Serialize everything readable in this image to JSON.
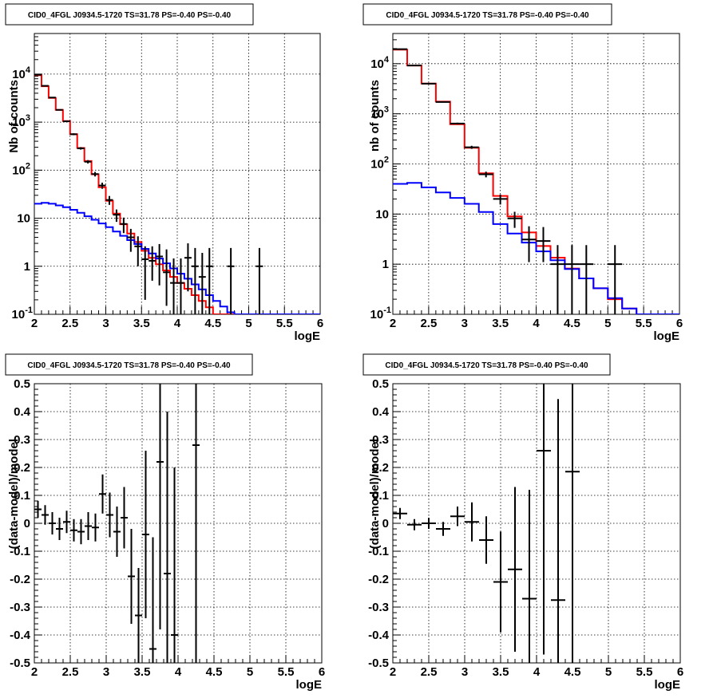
{
  "chart_data": [
    {
      "type": "line",
      "panel": "top-left",
      "title": "CID0_4FGL J0934.5-1720 TS=31.78 PS=-0.40 PS=-0.40",
      "xlabel": "logE",
      "ylabel": "Nb of counts",
      "xlim": [
        2,
        6
      ],
      "ylim": [
        0.1,
        70000
      ],
      "yscale": "log",
      "grid": true,
      "xticks": [
        "2",
        "2.5",
        "3",
        "3.5",
        "4",
        "4.5",
        "5",
        "5.5",
        "6"
      ],
      "yticks": [
        {
          "value": 0.1,
          "label": "10^-1"
        },
        {
          "value": 1,
          "label": "1"
        },
        {
          "value": 10,
          "label": "10"
        },
        {
          "value": 100,
          "label": "10^2"
        },
        {
          "value": 1000,
          "label": "10^3"
        },
        {
          "value": 10000,
          "label": "10^4"
        }
      ],
      "bin_edges": [
        2.0,
        2.1,
        2.2,
        2.3,
        2.4,
        2.5,
        2.6,
        2.7,
        2.8,
        2.9,
        3.0,
        3.1,
        3.2,
        3.3,
        3.4,
        3.5,
        3.6,
        3.7,
        3.8,
        3.9,
        4.0,
        4.1,
        4.2,
        4.3,
        4.4,
        4.5,
        4.6,
        4.7,
        4.8,
        4.9,
        5.0,
        5.1,
        5.2,
        5.3,
        5.4,
        5.5,
        5.6,
        5.7,
        5.8,
        5.9,
        6.0
      ],
      "series": [
        {
          "color": "#ff0000",
          "kind": "step",
          "values": [
            9500,
            5600,
            3200,
            1800,
            1050,
            560,
            290,
            155,
            82,
            44,
            23,
            12.5,
            7.5,
            4.8,
            3.2,
            2.1,
            1.5,
            1.1,
            0.82,
            0.6,
            0.45,
            0.34,
            0.25,
            0.19,
            0.14,
            0.1,
            0.1,
            0.1,
            0.1,
            0.1,
            0.1,
            0.1,
            0.1,
            0.1,
            0.1,
            0.1,
            0.1,
            0.1,
            0.1,
            0.1
          ]
        },
        {
          "color": "#0000ff",
          "kind": "step",
          "values": [
            20,
            21,
            20,
            18.5,
            17,
            15,
            13,
            11,
            9.3,
            7.8,
            6.5,
            5.3,
            4.3,
            3.5,
            2.9,
            2.3,
            1.85,
            1.45,
            1.15,
            0.9,
            0.7,
            0.55,
            0.42,
            0.33,
            0.25,
            0.19,
            0.145,
            0.11,
            0.1,
            0.1,
            0.1,
            0.1,
            0.1,
            0.1,
            0.1,
            0.1,
            0.1,
            0.1,
            0.1,
            0.1
          ]
        },
        {
          "color": "#000000",
          "kind": "errorbar",
          "x": [
            2.05,
            2.15,
            2.25,
            2.35,
            2.45,
            2.55,
            2.65,
            2.75,
            2.85,
            2.95,
            3.05,
            3.15,
            3.25,
            3.35,
            3.45,
            3.55,
            3.65,
            3.75,
            3.85,
            3.95,
            4.05,
            4.15,
            4.25,
            4.35,
            4.45,
            4.75,
            5.15
          ],
          "y": [
            9700,
            5700,
            3250,
            1800,
            1040,
            560,
            285,
            150,
            83,
            48,
            24,
            11.8,
            7.6,
            4.0,
            2.6,
            1.4,
            1.3,
            1.6,
            0.75,
            0.45,
            0.45,
            1.5,
            1.0,
            0.6,
            1.0,
            1.0,
            1.0
          ],
          "yerr_low": [
            100,
            75,
            57,
            42,
            32,
            24,
            17,
            12,
            9,
            7,
            5,
            3.4,
            2.7,
            2.0,
            1.6,
            1.2,
            0.8,
            1.2,
            0.6,
            0.45,
            0.45,
            1.2,
            0.9,
            0.6,
            0.9,
            0.9,
            0.9
          ],
          "yerr_high": [
            100,
            75,
            57,
            42,
            32,
            24,
            17,
            12,
            9,
            7,
            5,
            3.4,
            2.7,
            2.0,
            1.6,
            1.2,
            1.3,
            1.3,
            1.5,
            1.0,
            1.0,
            1.5,
            1.4,
            1.3,
            1.4,
            1.4,
            1.4
          ]
        }
      ]
    },
    {
      "type": "line",
      "panel": "top-right",
      "title": "CID0_4FGL J0934.5-1720 TS=31.78 PS=-0.40 PS=-0.40",
      "xlabel": "logE",
      "ylabel": "nb of counts",
      "xlim": [
        2,
        6
      ],
      "ylim": [
        0.1,
        40000
      ],
      "yscale": "log",
      "grid": true,
      "xticks": [
        "2",
        "2.5",
        "3",
        "3.5",
        "4",
        "4.5",
        "5",
        "5.5",
        "6"
      ],
      "yticks": [
        {
          "value": 0.1,
          "label": "10^-1"
        },
        {
          "value": 1,
          "label": "1"
        },
        {
          "value": 10,
          "label": "10"
        },
        {
          "value": 100,
          "label": "10^2"
        },
        {
          "value": 1000,
          "label": "10^3"
        },
        {
          "value": 10000,
          "label": "10^4"
        }
      ],
      "bin_edges": [
        2.0,
        2.2,
        2.4,
        2.6,
        2.8,
        3.0,
        3.2,
        3.4,
        3.6,
        3.8,
        4.0,
        4.2,
        4.4,
        4.6,
        4.8,
        5.0,
        5.2,
        5.4,
        5.6,
        5.8,
        6.0
      ],
      "series": [
        {
          "color": "#ff0000",
          "kind": "step",
          "values": [
            19000,
            9200,
            4000,
            1750,
            620,
            210,
            65,
            23,
            9.0,
            4.3,
            2.3,
            1.35,
            0.82,
            0.52,
            0.33,
            0.2,
            0.13,
            0.1,
            0.1,
            0.1
          ]
        },
        {
          "color": "#0000ff",
          "kind": "step",
          "values": [
            40,
            42,
            34,
            27,
            21,
            16,
            11,
            6.3,
            4.1,
            2.7,
            1.8,
            1.2,
            0.8,
            0.52,
            0.33,
            0.21,
            0.13,
            0.1,
            0.1,
            0.1
          ]
        },
        {
          "color": "#000000",
          "kind": "errorbar",
          "x": [
            2.1,
            2.3,
            2.5,
            2.7,
            2.9,
            3.1,
            3.3,
            3.5,
            3.7,
            3.9,
            4.1,
            4.3,
            4.5,
            4.7,
            5.1
          ],
          "y": [
            19500,
            9200,
            4000,
            1720,
            640,
            215,
            62,
            20,
            8.2,
            3.1,
            2.9,
            1.0,
            1.0,
            1.0,
            1.0
          ],
          "yerr_low": [
            140,
            96,
            63,
            42,
            25,
            15,
            8,
            4.5,
            2.9,
            2.0,
            1.8,
            0.9,
            0.9,
            0.9,
            0.9
          ],
          "yerr_high": [
            140,
            96,
            63,
            42,
            25,
            15,
            8,
            4.5,
            2.9,
            2.6,
            2.6,
            1.4,
            1.4,
            1.4,
            1.4
          ]
        }
      ]
    },
    {
      "type": "scatter",
      "panel": "bottom-left",
      "title": "CID0_4FGL J0934.5-1720 TS=31.78 PS=-0.40 PS=-0.40",
      "xlabel": "logE",
      "ylabel": "(data-model)/model",
      "xlim": [
        2,
        6
      ],
      "ylim": [
        -0.5,
        0.5
      ],
      "grid": true,
      "xticks": [
        "2",
        "2.5",
        "3",
        "3.5",
        "4",
        "4.5",
        "5",
        "5.5",
        "6"
      ],
      "yticks": [
        "-0.5",
        "-0.4",
        "-0.3",
        "-0.2",
        "-0.1",
        "0",
        "0.1",
        "0.2",
        "0.3",
        "0.4",
        "0.5"
      ],
      "x": [
        2.05,
        2.15,
        2.25,
        2.35,
        2.45,
        2.55,
        2.65,
        2.75,
        2.85,
        2.95,
        3.05,
        3.15,
        3.25,
        3.35,
        3.45,
        3.55,
        3.65,
        3.75,
        3.85,
        3.95,
        4.25
      ],
      "xerr": 0.05,
      "y": [
        0.05,
        0.03,
        0.0,
        -0.02,
        0.005,
        -0.025,
        -0.03,
        -0.01,
        -0.015,
        0.105,
        0.03,
        -0.03,
        0.02,
        -0.19,
        -0.33,
        -0.04,
        -0.45,
        0.22,
        -0.18,
        -0.4,
        0.28
      ],
      "yerr": [
        0.03,
        0.035,
        0.04,
        0.04,
        0.04,
        0.04,
        0.045,
        0.05,
        0.05,
        0.07,
        0.08,
        0.09,
        0.11,
        0.17,
        0.17,
        0.3,
        0.4,
        0.6,
        0.58,
        0.6,
        1.0
      ]
    },
    {
      "type": "scatter",
      "panel": "bottom-right",
      "title": "CID0_4FGL J0934.5-1720 TS=31.78 PS=-0.40 PS=-0.40",
      "xlabel": "logE",
      "ylabel": "(data-model)/model",
      "xlim": [
        2,
        6
      ],
      "ylim": [
        -0.5,
        0.5
      ],
      "grid": true,
      "xticks": [
        "2",
        "2.5",
        "3",
        "3.5",
        "4",
        "4.5",
        "5",
        "5.5",
        "6"
      ],
      "yticks": [
        "-0.5",
        "-0.4",
        "-0.3",
        "-0.2",
        "-0.1",
        "0",
        "0.1",
        "0.2",
        "0.3",
        "0.4",
        "0.5"
      ],
      "x": [
        2.1,
        2.3,
        2.5,
        2.7,
        2.9,
        3.1,
        3.3,
        3.5,
        3.7,
        3.9,
        4.1,
        4.3,
        4.5
      ],
      "xerr": 0.1,
      "y": [
        0.035,
        -0.005,
        0.0,
        -0.02,
        0.025,
        0.005,
        -0.06,
        -0.21,
        -0.165,
        -0.27,
        0.26,
        -0.275,
        0.185
      ],
      "yerr": [
        0.02,
        0.02,
        0.02,
        0.025,
        0.035,
        0.07,
        0.085,
        0.18,
        0.295,
        0.39,
        0.73,
        0.72,
        0.72
      ]
    }
  ]
}
